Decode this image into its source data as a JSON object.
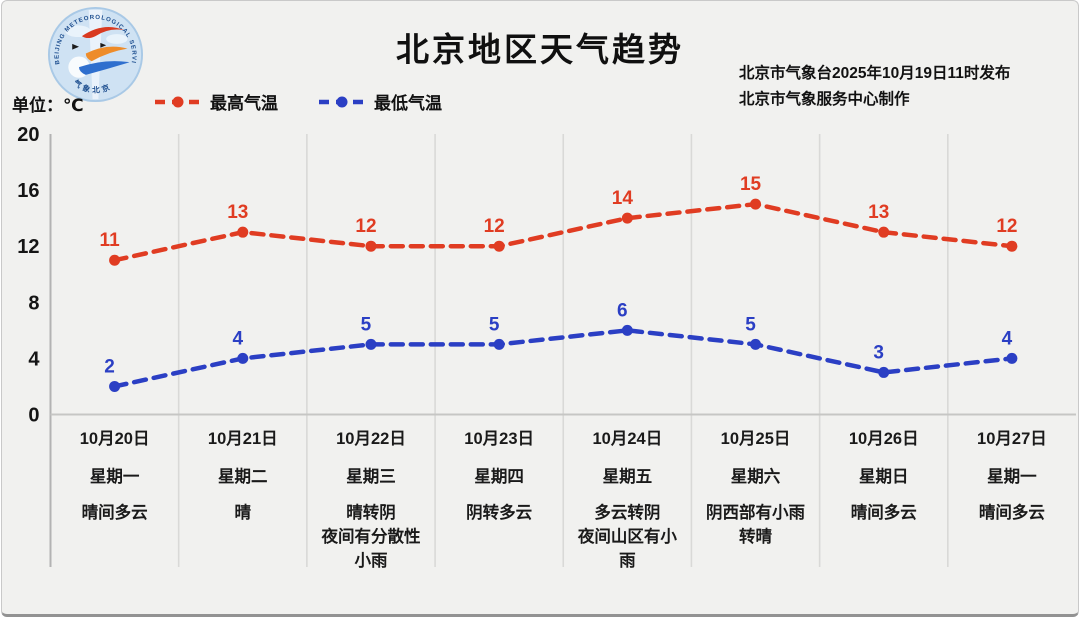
{
  "page": {
    "title": "北京地区天气趋势",
    "publisher_line1": "北京市气象台2025年10月19日11时发布",
    "publisher_line2": "北京市气象服务中心制作",
    "unit_label": "单位：℃",
    "logo_text_top": "BEIJING METEOROLOGICAL SERVICE",
    "logo_text_bottom": "气象北京"
  },
  "legend": {
    "items": [
      {
        "label": "最高气温",
        "color": "#e03c22"
      },
      {
        "label": "最低气温",
        "color": "#2b3fc4"
      }
    ]
  },
  "chart_data": {
    "type": "line",
    "line_style": "dashed",
    "unit": "℃",
    "ylim": [
      0,
      20
    ],
    "yticks": [
      0,
      4,
      8,
      12,
      16,
      20
    ],
    "grid": "vertical-only",
    "legend_position": "top-left",
    "categories": [
      "10月20日",
      "10月21日",
      "10月22日",
      "10月23日",
      "10月24日",
      "10月25日",
      "10月26日",
      "10月27日"
    ],
    "weekdays": [
      "星期一",
      "星期二",
      "星期三",
      "星期四",
      "星期五",
      "星期六",
      "星期日",
      "星期一"
    ],
    "weather": [
      "晴间多云",
      "晴",
      "晴转阴\n夜间有分散性\n小雨",
      "阴转多云",
      "多云转阴\n夜间山区有小\n雨",
      "阴西部有小雨\n转晴",
      "晴间多云",
      "晴间多云"
    ],
    "series": [
      {
        "name": "最高气温",
        "color": "#e03c22",
        "values": [
          11,
          13,
          12,
          12,
          14,
          15,
          13,
          12
        ]
      },
      {
        "name": "最低气温",
        "color": "#2b3fc4",
        "values": [
          2,
          4,
          5,
          5,
          6,
          5,
          3,
          4
        ]
      }
    ]
  }
}
